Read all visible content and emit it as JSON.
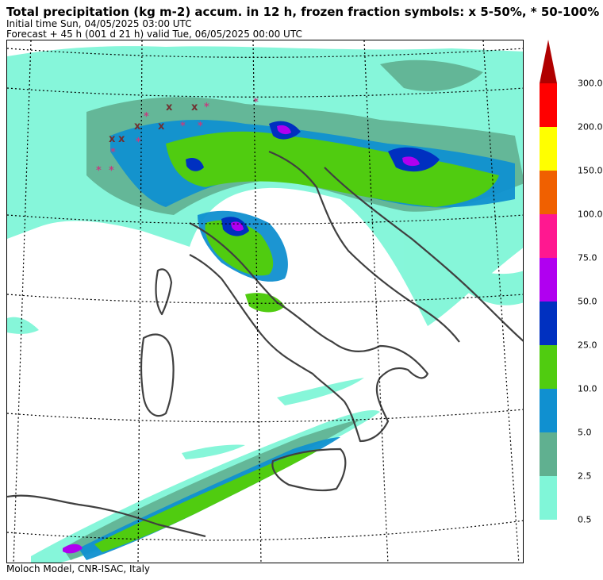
{
  "header": {
    "title": "Total precipitation (kg m-2) accum. in 12 h, frozen fraction symbols: x 5-50%, * 50-100%",
    "initial_time": "Initial time  Sun, 04/05/2025  03:00 UTC",
    "forecast": "Forecast  +  45 h  (001 d 21 h)  valid Tue, 06/05/2025 00:00 UTC"
  },
  "footer": {
    "credit": "Moloch Model, CNR-ISAC, Italy"
  },
  "colorbar": {
    "levels": [
      "0.5",
      "2.5",
      "5.0",
      "10.0",
      "25.0",
      "50.0",
      "75.0",
      "100.0",
      "150.0",
      "200.0",
      "300.0"
    ],
    "colors": [
      "#80f6d8",
      "#60b090",
      "#1090d0",
      "#50cc10",
      "#0030c0",
      "#b000f0",
      "#ff1890",
      "#f06000",
      "#ffff00",
      "#ff0000",
      "#b00000"
    ]
  },
  "symbols": {
    "partial_frozen": "x",
    "mostly_frozen": "*"
  }
}
